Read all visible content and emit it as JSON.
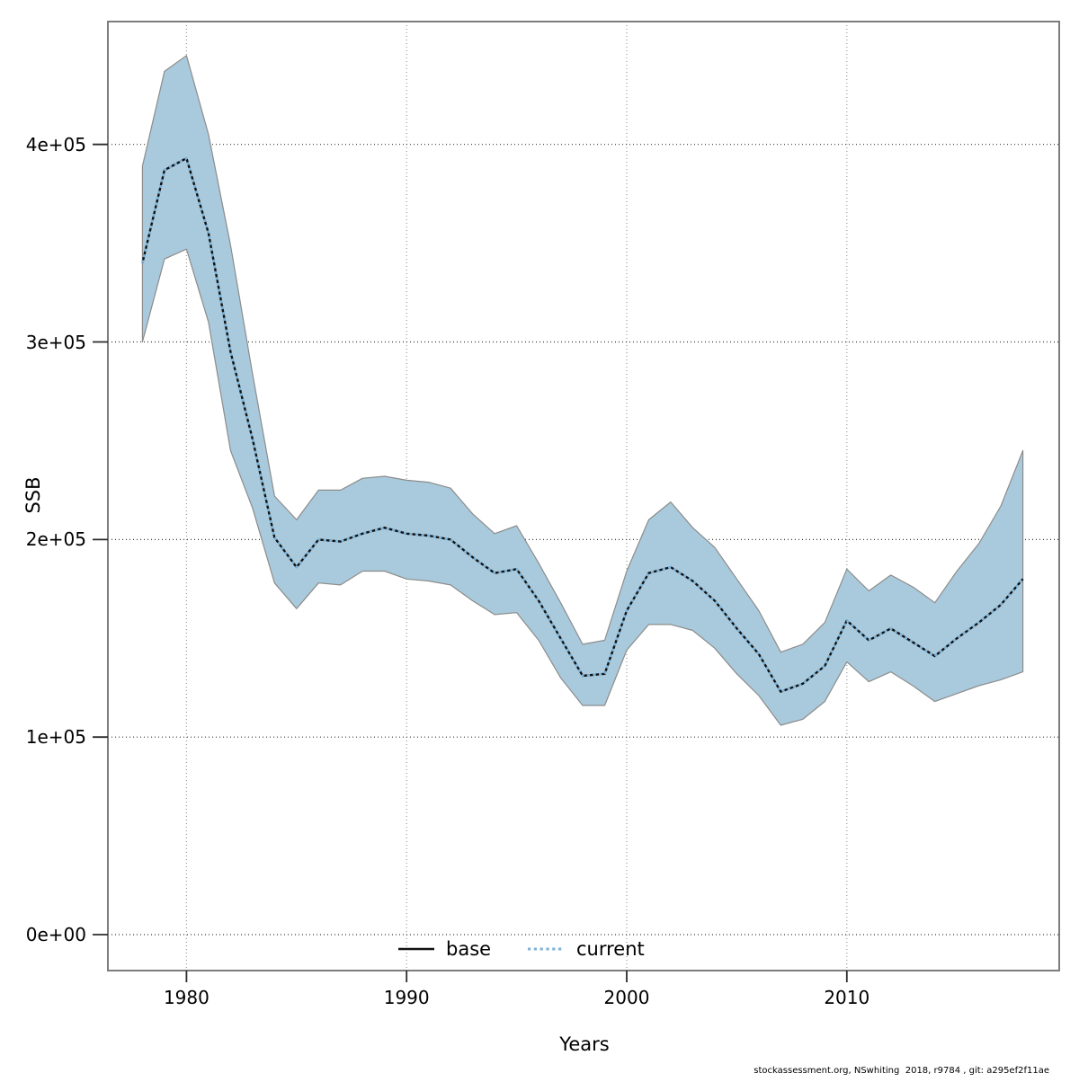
{
  "axes": {
    "x_title": "Years",
    "y_title": "SSB"
  },
  "legend": {
    "base_label": "base",
    "current_label": "current"
  },
  "footer": {
    "credit": "stockassessment.org, NSwhiting  2018, r9784 , git: a295ef2f11ae"
  },
  "colors": {
    "ribbon_fill": "#a9cadc",
    "ribbon_edge": "#8c8c8c",
    "base_line": "#111111",
    "current_line": "#7db2d8",
    "grid_h": "#3a3a3a",
    "grid_v": "#9a9a9a",
    "frame": "#7d7d7d",
    "tick": "#2b2b2b"
  },
  "chart_data": {
    "type": "line",
    "title": "",
    "xlabel": "Years",
    "ylabel": "SSB",
    "x": [
      1978,
      1979,
      1980,
      1981,
      1982,
      1983,
      1984,
      1985,
      1986,
      1987,
      1988,
      1989,
      1990,
      1991,
      1992,
      1993,
      1994,
      1995,
      1996,
      1997,
      1998,
      1999,
      2000,
      2001,
      2002,
      2003,
      2004,
      2005,
      2006,
      2007,
      2008,
      2009,
      2010,
      2011,
      2012,
      2013,
      2014,
      2015,
      2016,
      2017,
      2018
    ],
    "series": [
      {
        "name": "base",
        "style": "solid",
        "color": "#111111",
        "values": [
          340000,
          387000,
          393000,
          355000,
          295000,
          251000,
          201000,
          186000,
          200000,
          199000,
          203000,
          206000,
          203000,
          202000,
          200000,
          191000,
          183000,
          185000,
          169000,
          150000,
          131000,
          132000,
          164000,
          183000,
          186000,
          179000,
          169000,
          155000,
          142000,
          123000,
          127000,
          136000,
          159000,
          149000,
          155000,
          148000,
          141000,
          150000,
          158000,
          167000,
          180000
        ]
      },
      {
        "name": "current",
        "style": "dotted",
        "color": "#7db2d8",
        "values": [
          340000,
          387000,
          393000,
          355000,
          295000,
          251000,
          201000,
          186000,
          200000,
          199000,
          203000,
          206000,
          203000,
          202000,
          200000,
          191000,
          183000,
          185000,
          169000,
          150000,
          131000,
          132000,
          164000,
          183000,
          186000,
          179000,
          169000,
          155000,
          142000,
          123000,
          127000,
          136000,
          159000,
          149000,
          155000,
          148000,
          141000,
          150000,
          158000,
          167000,
          180000
        ]
      }
    ],
    "ribbon": {
      "name": "current-confidence-interval",
      "fill": "#a9cadc",
      "edge": "#8c8c8c",
      "lower": [
        300000,
        342000,
        347000,
        310000,
        245000,
        216000,
        178000,
        165000,
        178000,
        177000,
        184000,
        184000,
        180000,
        179000,
        177000,
        169000,
        162000,
        163000,
        149000,
        130000,
        116000,
        116000,
        144000,
        157000,
        157000,
        154000,
        145000,
        132000,
        121000,
        106000,
        109000,
        118000,
        138000,
        128000,
        133000,
        126000,
        118000,
        122000,
        126000,
        129000,
        133000
      ],
      "upper": [
        389000,
        437000,
        445000,
        405000,
        349000,
        284000,
        222000,
        210000,
        225000,
        225000,
        231000,
        232000,
        230000,
        229000,
        226000,
        213000,
        203000,
        207000,
        188000,
        168000,
        147000,
        149000,
        184000,
        210000,
        219000,
        206000,
        196000,
        180000,
        164000,
        143000,
        147000,
        158000,
        185000,
        174000,
        182000,
        176000,
        168000,
        184000,
        198000,
        217000,
        245000
      ]
    },
    "xticks": {
      "values": [
        1980,
        1990,
        2000,
        2010
      ],
      "labels": [
        "1980",
        "1990",
        "2000",
        "2010"
      ]
    },
    "yticks": {
      "values": [
        0,
        100000,
        200000,
        300000,
        400000
      ],
      "labels": [
        "0e+00",
        "1e+05",
        "2e+05",
        "3e+05",
        "4e+05"
      ]
    },
    "xlim": [
      1976.43,
      2019.65
    ],
    "ylim": [
      -18200,
      462200
    ],
    "grid": true,
    "legend_position": "bottom-center-inside"
  }
}
